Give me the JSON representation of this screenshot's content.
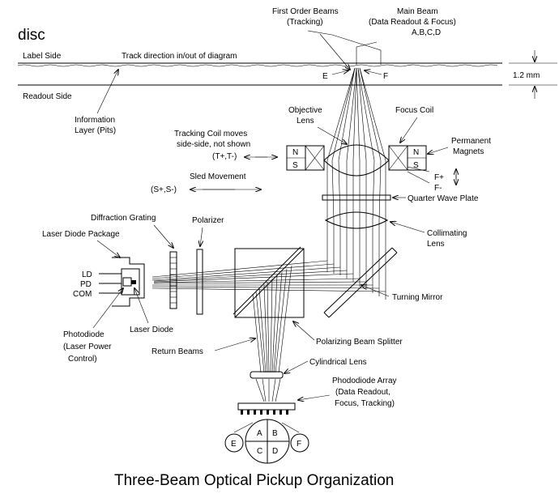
{
  "disc": "disc",
  "label_side": "Label Side",
  "track_direction": "Track direction in/out of diagram",
  "readout_side": "Readout Side",
  "thickness": "1.2 mm",
  "information_layer": [
    "Information",
    "Layer (Pits)"
  ],
  "first_order_beams": [
    "First Order Beams",
    "(Tracking)"
  ],
  "main_beam": [
    "Main Beam",
    "(Data Readout & Focus)",
    "A,B,C,D"
  ],
  "beam_e": "E",
  "beam_f": "F",
  "objective_lens": [
    "Objective",
    "Lens"
  ],
  "focus_coil": "Focus Coil",
  "permanent_magnets": [
    "Permanent",
    "Magnets"
  ],
  "tracking_coil": [
    "Tracking Coil moves",
    "side-side, not shown",
    "(T+,T-)"
  ],
  "magnet_n": "N",
  "magnet_s": "S",
  "focus_plus": "F+",
  "focus_minus": "F-",
  "sled_movement": "Sled Movement",
  "sled_terms": "(S+,S-)",
  "quarter_wave_plate": "Quarter Wave Plate",
  "collimating_lens": [
    "Collimating",
    "Lens"
  ],
  "diffraction_grating": "Diffraction Grating",
  "polarizer": "Polarizer",
  "laser_diode_package": "Laser Diode Package",
  "pin_ld": "LD",
  "pin_pd": "PD",
  "pin_com": "COM",
  "turning_mirror": "Turning Mirror",
  "photodiode": [
    "Photodiode",
    "(Laser Power",
    "Control)"
  ],
  "laser_diode": "Laser Diode",
  "polarizing_beam_splitter": "Polarizing Beam Splitter",
  "return_beams": "Return Beams",
  "cylindrical_lens": "Cylindrical Lens",
  "photodiode_array": [
    "Phododiode Array",
    "(Data Readout,",
    "Focus, Tracking)"
  ],
  "quadrants": [
    "A",
    "B",
    "C",
    "D"
  ],
  "side_e": "E",
  "side_f": "F",
  "title": "Three-Beam Optical Pickup Organization"
}
